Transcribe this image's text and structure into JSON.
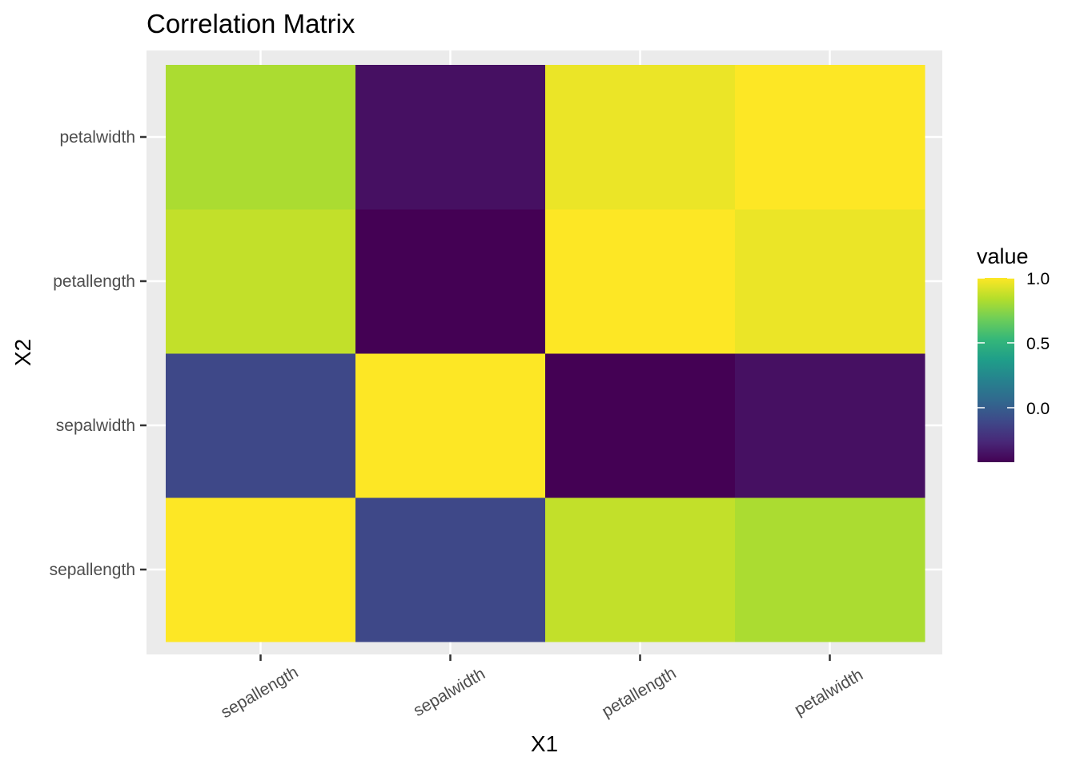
{
  "chart_data": {
    "type": "heatmap",
    "title": "Correlation Matrix",
    "xlabel": "X1",
    "ylabel": "X2",
    "x_categories": [
      "sepallength",
      "sepalwidth",
      "petallength",
      "petalwidth"
    ],
    "y_categories": [
      "sepallength",
      "sepalwidth",
      "petallength",
      "petalwidth"
    ],
    "values": [
      [
        1.0,
        -0.11,
        0.87,
        0.82
      ],
      [
        -0.11,
        1.0,
        -0.42,
        -0.36
      ],
      [
        0.87,
        -0.42,
        1.0,
        0.96
      ],
      [
        0.82,
        -0.36,
        0.96,
        1.0
      ]
    ],
    "legend": {
      "title": "value",
      "ticks": [
        "1.0",
        "0.5",
        "0.0"
      ],
      "tick_values": [
        1.0,
        0.5,
        0.0
      ],
      "range": [
        -0.42,
        1.0
      ],
      "position": "right"
    },
    "colormap": "viridis",
    "grid": true
  }
}
